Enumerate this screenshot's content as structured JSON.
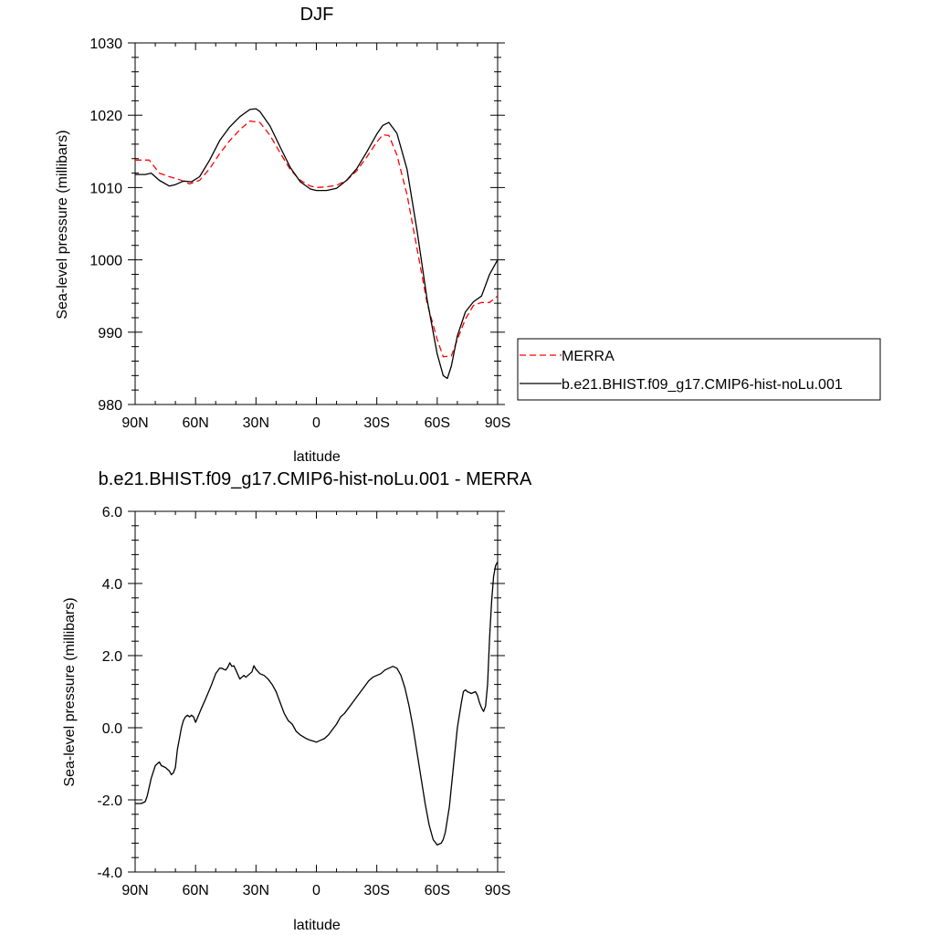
{
  "chart_data": [
    {
      "type": "line",
      "title": "DJF",
      "xlabel": "latitude",
      "ylabel": "Sea-level pressure (millibars)",
      "xlim": [
        90,
        -90
      ],
      "ylim": [
        980,
        1030
      ],
      "x_ticks": [
        90,
        60,
        30,
        0,
        -30,
        -60,
        -90
      ],
      "x_tick_labels": [
        "90N",
        "60N",
        "30N",
        "0",
        "30S",
        "60S",
        "90S"
      ],
      "y_ticks": [
        980,
        990,
        1000,
        1010,
        1020,
        1030
      ],
      "y_tick_labels": [
        "980",
        "990",
        "1000",
        "1010",
        "1020",
        "1030"
      ],
      "legend_position": "right",
      "series": [
        {
          "name": "MERRA",
          "color": "#ff0000",
          "dash": true,
          "x": [
            90,
            83,
            78,
            73,
            68,
            63,
            58,
            53,
            48,
            43,
            38,
            33,
            28,
            23,
            18,
            13,
            8,
            3,
            0,
            -5,
            -10,
            -15,
            -20,
            -25,
            -30,
            -33,
            -36,
            -40,
            -45,
            -50,
            -55,
            -60,
            -63,
            -67,
            -70,
            -74,
            -78,
            -82,
            -86,
            -90
          ],
          "values": [
            1013.8,
            1013.8,
            1012.0,
            1011.5,
            1011.1,
            1010.5,
            1011.0,
            1012.6,
            1014.7,
            1016.5,
            1018.0,
            1019.2,
            1019.0,
            1017.2,
            1014.8,
            1012.5,
            1011.0,
            1010.2,
            1010.0,
            1010.1,
            1010.3,
            1011.0,
            1012.3,
            1014.2,
            1016.3,
            1017.3,
            1017.2,
            1014.5,
            1009.0,
            1001.5,
            994.0,
            989.0,
            986.6,
            986.7,
            989.0,
            991.8,
            993.7,
            994.1,
            994.1,
            995.0
          ]
        },
        {
          "name": "b.e21.BHIST.f09_g17.CMIP6-hist-noLu.001",
          "color": "#000000",
          "dash": false,
          "x": [
            90,
            85,
            82,
            78,
            73,
            70,
            66,
            62,
            58,
            53,
            48,
            43,
            38,
            33,
            30,
            28,
            23,
            18,
            13,
            8,
            3,
            0,
            -5,
            -10,
            -15,
            -20,
            -25,
            -30,
            -33,
            -36,
            -40,
            -45,
            -50,
            -55,
            -60,
            -63,
            -65,
            -67,
            -70,
            -74,
            -78,
            -82,
            -86,
            -90
          ],
          "values": [
            1011.8,
            1011.8,
            1012.0,
            1011.0,
            1010.2,
            1010.4,
            1010.9,
            1010.8,
            1011.5,
            1013.8,
            1016.5,
            1018.4,
            1019.8,
            1020.8,
            1020.9,
            1020.5,
            1018.5,
            1015.6,
            1012.8,
            1010.8,
            1009.8,
            1009.6,
            1009.6,
            1009.9,
            1011.0,
            1012.6,
            1014.9,
            1017.4,
            1018.6,
            1019.0,
            1017.5,
            1012.5,
            1004.0,
            994.5,
            987.0,
            984.0,
            983.6,
            985.3,
            989.5,
            992.8,
            994.2,
            995.0,
            998.0,
            1000.0
          ]
        }
      ]
    },
    {
      "type": "line",
      "title": "b.e21.BHIST.f09_g17.CMIP6-hist-noLu.001 - MERRA",
      "xlabel": "latitude",
      "ylabel": "Sea-level pressure (millibars)",
      "xlim": [
        90,
        -90
      ],
      "ylim": [
        -4.0,
        6.0
      ],
      "x_ticks": [
        90,
        60,
        30,
        0,
        -30,
        -60,
        -90
      ],
      "x_tick_labels": [
        "90N",
        "60N",
        "30N",
        "0",
        "30S",
        "60S",
        "90S"
      ],
      "y_ticks": [
        -4,
        -2,
        0,
        2,
        4,
        6
      ],
      "y_tick_labels": [
        "-4.0",
        "-2.0",
        "0.0",
        "2.0",
        "4.0",
        "6.0"
      ],
      "series": [
        {
          "color": "#000000",
          "dash": false,
          "x": [
            90,
            87,
            85,
            84,
            82,
            80,
            78,
            77,
            75,
            73,
            72,
            71,
            70,
            69,
            67,
            66,
            65,
            64,
            63,
            62,
            61,
            60,
            57,
            55,
            52,
            50,
            48,
            47,
            46,
            45,
            44,
            43,
            42,
            41,
            40,
            38,
            37,
            36,
            35,
            33,
            32,
            31,
            30,
            28,
            26,
            24,
            22,
            20,
            18,
            16,
            14,
            12,
            10,
            8,
            5,
            3,
            1,
            0,
            -2,
            -4,
            -6,
            -8,
            -10,
            -12,
            -14,
            -16,
            -18,
            -20,
            -22,
            -24,
            -26,
            -28,
            -30,
            -32,
            -34,
            -36,
            -38,
            -40,
            -42,
            -44,
            -46,
            -48,
            -50,
            -52,
            -54,
            -56,
            -58,
            -60,
            -62,
            -63,
            -64,
            -66,
            -68,
            -70,
            -72,
            -73,
            -74,
            -75,
            -77,
            -79,
            -80,
            -81,
            -82,
            -83,
            -84,
            -85,
            -86,
            -87,
            -88,
            -89,
            -90
          ],
          "values": [
            -2.1,
            -2.1,
            -2.05,
            -1.9,
            -1.4,
            -1.05,
            -0.95,
            -1.05,
            -1.1,
            -1.2,
            -1.3,
            -1.25,
            -1.1,
            -0.6,
            0.0,
            0.2,
            0.3,
            0.35,
            0.3,
            0.35,
            0.3,
            0.15,
            0.55,
            0.8,
            1.2,
            1.5,
            1.65,
            1.65,
            1.62,
            1.6,
            1.68,
            1.8,
            1.7,
            1.72,
            1.6,
            1.35,
            1.4,
            1.45,
            1.4,
            1.5,
            1.55,
            1.72,
            1.62,
            1.5,
            1.45,
            1.35,
            1.2,
            1.0,
            0.7,
            0.4,
            0.2,
            0.1,
            -0.1,
            -0.2,
            -0.3,
            -0.35,
            -0.38,
            -0.4,
            -0.35,
            -0.3,
            -0.2,
            -0.05,
            0.1,
            0.3,
            0.4,
            0.55,
            0.7,
            0.85,
            1.0,
            1.15,
            1.3,
            1.4,
            1.45,
            1.5,
            1.6,
            1.65,
            1.7,
            1.65,
            1.45,
            1.1,
            0.6,
            0.0,
            -0.7,
            -1.4,
            -2.1,
            -2.7,
            -3.1,
            -3.25,
            -3.2,
            -3.1,
            -2.9,
            -2.2,
            -1.1,
            0.0,
            0.7,
            1.0,
            1.05,
            1.0,
            0.95,
            1.0,
            0.9,
            0.7,
            0.55,
            0.45,
            0.6,
            1.2,
            2.5,
            3.5,
            4.2,
            4.5,
            4.6
          ]
        }
      ]
    }
  ]
}
